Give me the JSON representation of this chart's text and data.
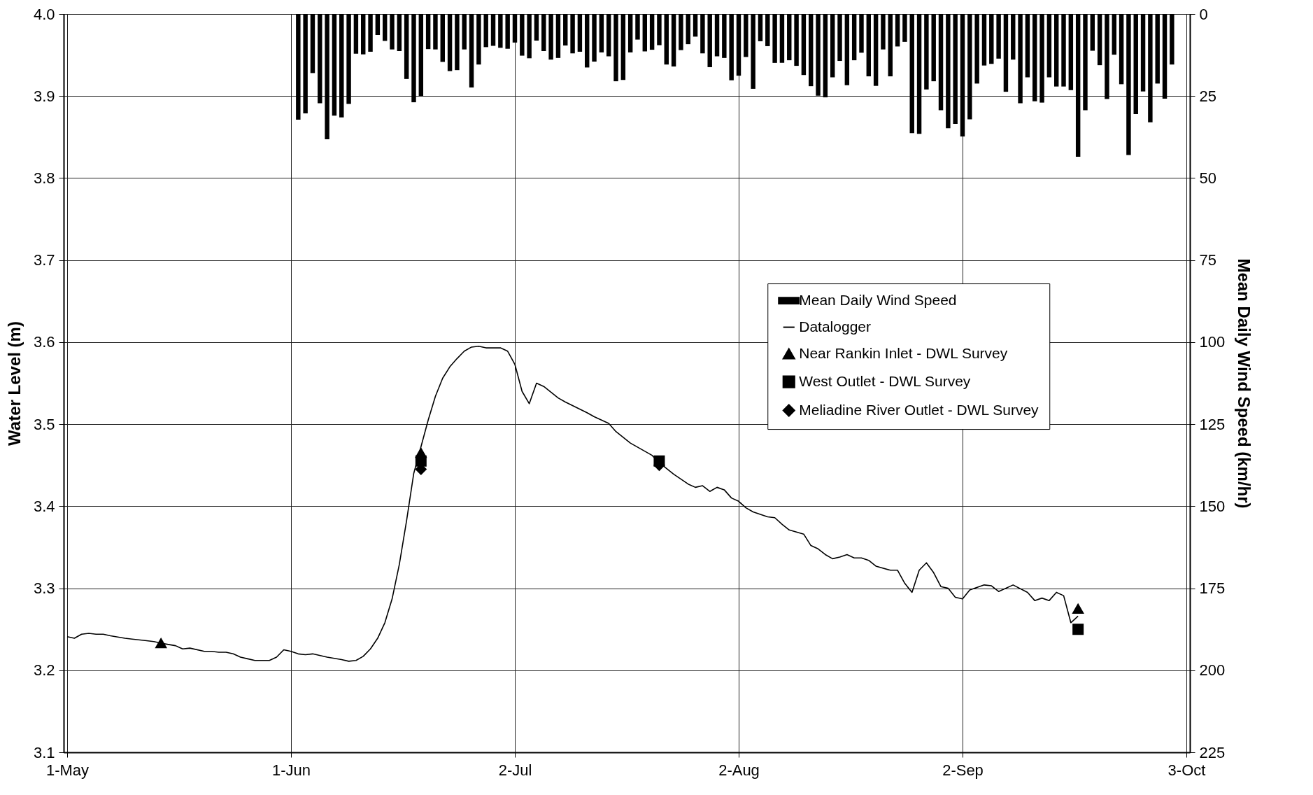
{
  "chart_data": {
    "type": "line",
    "xlim": [
      "--05-01",
      "--10-03"
    ],
    "xticks": [
      {
        "value": "--05-01",
        "label": "1-May"
      },
      {
        "value": "--06-01",
        "label": "1-Jun"
      },
      {
        "value": "--07-02",
        "label": "2-Jul"
      },
      {
        "value": "--08-02",
        "label": "2-Aug"
      },
      {
        "value": "--09-02",
        "label": "2-Sep"
      },
      {
        "value": "--10-03",
        "label": "3-Oct"
      }
    ],
    "ylabel": "Water Level (m)",
    "y2label": "Mean Daily Wind Speed (km/hr)",
    "ylim": [
      3.1,
      4.0
    ],
    "yticks": [
      3.1,
      3.2,
      3.3,
      3.4,
      3.5,
      3.6,
      3.7,
      3.8,
      3.9,
      {
        "value": 4.0,
        "label": "4.0"
      }
    ],
    "y2lim": [
      225,
      0
    ],
    "y2ticks": [
      0,
      25,
      50,
      75,
      100,
      125,
      150,
      175,
      200,
      225
    ],
    "grid": true,
    "legend": "right",
    "series": [
      {
        "name": "Mean Daily Wind Speed",
        "type": "bar",
        "axis": "y2",
        "color": "#000000",
        "x": [
          "--06-02",
          "--06-03",
          "--06-04",
          "--06-05",
          "--06-06",
          "--06-07",
          "--06-08",
          "--06-09",
          "--06-10",
          "--06-11",
          "--06-12",
          "--06-13",
          "--06-14",
          "--06-15",
          "--06-16",
          "--06-17",
          "--06-18",
          "--06-19",
          "--06-20",
          "--06-21",
          "--06-22",
          "--06-23",
          "--06-24",
          "--06-25",
          "--06-26",
          "--06-27",
          "--06-28",
          "--06-29",
          "--06-30",
          "--07-01",
          "--07-02",
          "--07-03",
          "--07-04",
          "--07-05",
          "--07-06",
          "--07-07",
          "--07-08",
          "--07-09",
          "--07-10",
          "--07-11",
          "--07-12",
          "--07-13",
          "--07-14",
          "--07-15",
          "--07-16",
          "--07-17",
          "--07-18",
          "--07-19",
          "--07-20",
          "--07-21",
          "--07-22",
          "--07-23",
          "--07-24",
          "--07-25",
          "--07-26",
          "--07-27",
          "--07-28",
          "--07-29",
          "--07-30",
          "--07-31",
          "--08-01",
          "--08-02",
          "--08-03",
          "--08-04",
          "--08-05",
          "--08-06",
          "--08-07",
          "--08-08",
          "--08-09",
          "--08-10",
          "--08-11",
          "--08-12",
          "--08-13",
          "--08-14",
          "--08-15",
          "--08-16",
          "--08-17",
          "--08-18",
          "--08-19",
          "--08-20",
          "--08-21",
          "--08-22",
          "--08-23",
          "--08-24",
          "--08-25",
          "--08-26",
          "--08-27",
          "--08-28",
          "--08-29",
          "--08-30",
          "--08-31",
          "--09-01",
          "--09-02",
          "--09-03",
          "--09-04",
          "--09-05",
          "--09-06",
          "--09-07",
          "--09-08",
          "--09-09",
          "--09-10",
          "--09-11",
          "--09-12",
          "--09-13",
          "--09-14",
          "--09-15",
          "--09-16",
          "--09-17",
          "--09-18",
          "--09-19",
          "--09-20",
          "--09-21",
          "--09-22",
          "--09-23",
          "--09-24",
          "--09-25",
          "--09-26",
          "--09-27",
          "--09-28",
          "--09-29",
          "--09-30",
          "--10-01"
        ],
        "values": [
          32.2,
          30.3,
          18.0,
          27.2,
          38.2,
          31.0,
          31.5,
          27.4,
          12.1,
          12.3,
          11.5,
          6.4,
          8.2,
          10.8,
          11.3,
          19.8,
          26.9,
          25.0,
          10.7,
          10.8,
          14.6,
          17.4,
          17.1,
          10.8,
          22.4,
          15.4,
          10.1,
          9.7,
          10.3,
          10.6,
          8.7,
          12.7,
          13.5,
          8.1,
          11.3,
          13.9,
          13.4,
          9.6,
          12.0,
          11.5,
          16.3,
          14.5,
          11.7,
          12.9,
          20.5,
          20.1,
          11.7,
          7.8,
          11.4,
          10.9,
          9.5,
          15.4,
          16.0,
          11.0,
          9.2,
          6.9,
          12.0,
          16.2,
          12.9,
          13.4,
          20.2,
          18.8,
          13.1,
          22.8,
          8.3,
          9.8,
          14.9,
          14.9,
          14.1,
          15.8,
          18.6,
          22.0,
          24.9,
          25.4,
          19.3,
          14.3,
          21.7,
          14.1,
          11.8,
          19.0,
          21.9,
          10.8,
          19.0,
          9.9,
          8.5,
          36.3,
          36.5,
          23.0,
          20.5,
          29.3,
          34.8,
          33.5,
          37.3,
          32.1,
          21.2,
          15.7,
          15.2,
          13.6,
          23.7,
          13.9,
          27.2,
          19.3,
          26.6,
          27.0,
          19.3,
          22.1,
          22.1,
          23.2,
          43.5,
          29.3,
          11.2,
          15.6,
          25.9,
          12.4,
          21.4,
          43.0,
          30.5,
          23.6,
          33.0,
          21.2,
          25.8,
          15.4
        ]
      },
      {
        "name": "Datalogger",
        "color": "#000000",
        "line_style": "solid",
        "marker": "none",
        "x": [
          "--05-01",
          "--05-02",
          "--05-03",
          "--05-04",
          "--05-05",
          "--05-06",
          "--05-07",
          "--05-09",
          "--05-10",
          "--05-12",
          "--05-13",
          "--05-14",
          "--05-16",
          "--05-17",
          "--05-18",
          "--05-20",
          "--05-21",
          "--05-22",
          "--05-23",
          "--05-24",
          "--05-25",
          "--05-26",
          "--05-27",
          "--05-29",
          "--05-30",
          "--05-31",
          "--06-01",
          "--06-02",
          "--06-03",
          "--06-04",
          "--06-06",
          "--06-08",
          "--06-09",
          "--06-10",
          "--06-11",
          "--06-12",
          "--06-13",
          "--06-14",
          "--06-15",
          "--06-16",
          "--06-17",
          "--06-18",
          "--06-20",
          "--06-21",
          "--06-22",
          "--06-23",
          "--06-24",
          "--06-25",
          "--06-26",
          "--06-27",
          "--06-28",
          "--06-30",
          "--07-01",
          "--07-02",
          "--07-03",
          "--07-04",
          "--07-05",
          "--07-06",
          "--07-08",
          "--07-09",
          "--07-12",
          "--07-13",
          "--07-15",
          "--07-16",
          "--07-18",
          "--07-21",
          "--07-22",
          "--07-24",
          "--07-26",
          "--07-27",
          "--07-28",
          "--07-29",
          "--07-30",
          "--07-31",
          "--08-01",
          "--08-02",
          "--08-03",
          "--08-04",
          "--08-06",
          "--08-07",
          "--08-08",
          "--08-09",
          "--08-11",
          "--08-12",
          "--08-13",
          "--08-14",
          "--08-15",
          "--08-16",
          "--08-17",
          "--08-18",
          "--08-19",
          "--08-20",
          "--08-21",
          "--08-23",
          "--08-24",
          "--08-25",
          "--08-26",
          "--08-27",
          "--08-28",
          "--08-29",
          "--08-30",
          "--08-31",
          "--09-01",
          "--09-02",
          "--09-03",
          "--09-05",
          "--09-06",
          "--09-07",
          "--09-09",
          "--09-11",
          "--09-12",
          "--09-13",
          "--09-14",
          "--09-15",
          "--09-16",
          "--09-17",
          "--09-18"
        ],
        "values": [
          3.241,
          3.239,
          3.244,
          3.245,
          3.244,
          3.244,
          3.242,
          3.239,
          3.238,
          3.236,
          3.235,
          3.233,
          3.23,
          3.226,
          3.227,
          3.223,
          3.223,
          3.222,
          3.222,
          3.22,
          3.216,
          3.214,
          3.212,
          3.212,
          3.216,
          3.225,
          3.223,
          3.22,
          3.219,
          3.22,
          3.216,
          3.213,
          3.211,
          3.212,
          3.217,
          3.226,
          3.239,
          3.258,
          3.287,
          3.329,
          3.382,
          3.44,
          3.505,
          3.534,
          3.556,
          3.57,
          3.58,
          3.589,
          3.594,
          3.595,
          3.593,
          3.593,
          3.589,
          3.573,
          3.54,
          3.525,
          3.55,
          3.546,
          3.532,
          3.527,
          3.514,
          3.509,
          3.501,
          3.491,
          3.477,
          3.462,
          3.453,
          3.439,
          3.427,
          3.423,
          3.425,
          3.418,
          3.423,
          3.42,
          3.41,
          3.406,
          3.398,
          3.393,
          3.387,
          3.386,
          3.378,
          3.371,
          3.366,
          3.352,
          3.348,
          3.341,
          3.336,
          3.338,
          3.341,
          3.337,
          3.337,
          3.334,
          3.327,
          3.322,
          3.322,
          3.306,
          3.295,
          3.322,
          3.331,
          3.319,
          3.302,
          3.3,
          3.289,
          3.287,
          3.298,
          3.304,
          3.303,
          3.296,
          3.304,
          3.295,
          3.285,
          3.288,
          3.285,
          3.295,
          3.291,
          3.258,
          3.266
        ]
      },
      {
        "name": "Near Rankin Inlet - DWL Survey",
        "type": "scatter",
        "marker": "triangle",
        "color": "#000000",
        "x": [
          "--05-14",
          "--06-19",
          "--09-18"
        ],
        "values": [
          3.233,
          3.465,
          3.275
        ]
      },
      {
        "name": "West Outlet - DWL Survey",
        "type": "scatter",
        "marker": "square",
        "color": "#000000",
        "x": [
          "--06-19",
          "--07-22",
          "--09-18"
        ],
        "values": [
          3.455,
          3.455,
          3.25
        ]
      },
      {
        "name": "Meliadine River Outlet - DWL Survey",
        "type": "scatter",
        "marker": "diamond",
        "color": "#000000",
        "x": [
          "--06-19",
          "--07-22"
        ],
        "values": [
          3.445,
          3.45
        ]
      }
    ]
  }
}
